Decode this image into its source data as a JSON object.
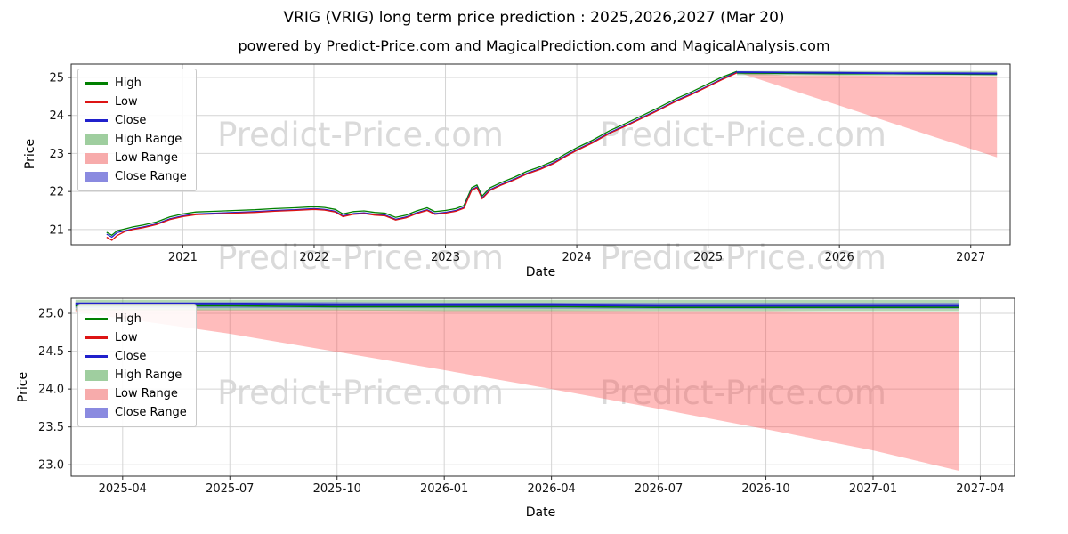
{
  "title": "VRIG (VRIG) long term price prediction : 2025,2026,2027 (Mar 20)",
  "subtitle": "powered by Predict-Price.com and MagicalPrediction.com and MagicalAnalysis.com",
  "watermark": {
    "text": "Predict-Price.com"
  },
  "legend": {
    "items": [
      {
        "label": "High",
        "color": "#008000",
        "type": "line"
      },
      {
        "label": "Low",
        "color": "#dd1414",
        "type": "line"
      },
      {
        "label": "Close",
        "color": "#2020cc",
        "type": "line"
      },
      {
        "label": "High Range",
        "color": "#9fce9f",
        "type": "patch"
      },
      {
        "label": "Low Range",
        "color": "#f7abab",
        "type": "patch"
      },
      {
        "label": "Close Range",
        "color": "#8a8ae0",
        "type": "patch"
      }
    ]
  },
  "chart_data": [
    {
      "type": "line",
      "title": "",
      "xlabel": "Date",
      "ylabel": "Price",
      "xlim": [
        2020.15,
        2027.3
      ],
      "ylim": [
        20.6,
        25.35
      ],
      "grid": true,
      "legend_position": "upper left",
      "xticks": [
        {
          "v": 2021,
          "label": "2021"
        },
        {
          "v": 2022,
          "label": "2022"
        },
        {
          "v": 2023,
          "label": "2023"
        },
        {
          "v": 2024,
          "label": "2024"
        },
        {
          "v": 2025,
          "label": "2025"
        },
        {
          "v": 2026,
          "label": "2026"
        },
        {
          "v": 2027,
          "label": "2027"
        }
      ],
      "yticks": [
        {
          "v": 21,
          "label": "21"
        },
        {
          "v": 22,
          "label": "22"
        },
        {
          "v": 23,
          "label": "23"
        },
        {
          "v": 24,
          "label": "24"
        },
        {
          "v": 25,
          "label": "25"
        }
      ],
      "bands": [
        {
          "name": "low-range",
          "color": "#ff5050",
          "opacity": 0.38,
          "x": [
            2025.22,
            2025.6,
            2026.0,
            2026.4,
            2026.8,
            2027.2
          ],
          "upper": [
            25.14,
            25.05,
            25.05,
            25.04,
            25.04,
            25.03
          ],
          "lower": [
            25.14,
            24.71,
            24.26,
            23.8,
            23.35,
            22.9
          ]
        },
        {
          "name": "high-range",
          "color": "#57a957",
          "opacity": 0.45,
          "x": [
            2025.22,
            2025.6,
            2026.0,
            2026.4,
            2026.8,
            2027.2
          ],
          "upper": [
            25.17,
            25.17,
            25.17,
            25.17,
            25.17,
            25.17
          ],
          "lower": [
            25.06,
            25.06,
            25.05,
            25.05,
            25.05,
            25.04
          ]
        },
        {
          "name": "close-range",
          "color": "#5b5bdb",
          "opacity": 0.5,
          "x": [
            2025.22,
            2025.6,
            2026.0,
            2026.4,
            2026.8,
            2027.2
          ],
          "upper": [
            25.16,
            25.15,
            25.15,
            25.14,
            25.14,
            25.14
          ],
          "lower": [
            25.09,
            25.09,
            25.08,
            25.08,
            25.07,
            25.07
          ]
        }
      ],
      "lines": [
        {
          "name": "high-history",
          "color": "#008000",
          "width": 1.3,
          "x": [
            2020.42,
            2020.46,
            2020.5,
            2020.56,
            2020.62,
            2020.7,
            2020.8,
            2020.9,
            2021.0,
            2021.1,
            2021.25,
            2021.4,
            2021.55,
            2021.7,
            2021.85,
            2022.0,
            2022.08,
            2022.16,
            2022.22,
            2022.3,
            2022.38,
            2022.46,
            2022.54,
            2022.62,
            2022.7,
            2022.78,
            2022.86,
            2022.92,
            2023.0,
            2023.08,
            2023.14,
            2023.2,
            2023.24,
            2023.28,
            2023.34,
            2023.42,
            2023.52,
            2023.62,
            2023.72,
            2023.82,
            2023.92,
            2024.0,
            2024.12,
            2024.25,
            2024.38,
            2024.5,
            2024.62,
            2024.75,
            2024.88,
            2025.0,
            2025.1,
            2025.22
          ],
          "y": [
            20.93,
            20.85,
            20.97,
            21.02,
            21.07,
            21.12,
            21.2,
            21.33,
            21.41,
            21.46,
            21.48,
            21.5,
            21.52,
            21.55,
            21.57,
            21.6,
            21.58,
            21.53,
            21.41,
            21.47,
            21.49,
            21.45,
            21.43,
            21.32,
            21.38,
            21.49,
            21.57,
            21.47,
            21.5,
            21.55,
            21.63,
            22.1,
            22.17,
            21.88,
            22.1,
            22.23,
            22.37,
            22.53,
            22.65,
            22.8,
            23.0,
            23.15,
            23.35,
            23.6,
            23.8,
            24.0,
            24.2,
            24.43,
            24.63,
            24.83,
            25.0,
            25.16
          ]
        },
        {
          "name": "close-history",
          "color": "#2020cc",
          "width": 1.3,
          "x": [
            2020.42,
            2020.46,
            2020.5,
            2020.56,
            2020.62,
            2020.7,
            2020.8,
            2020.9,
            2021.0,
            2021.1,
            2021.25,
            2021.4,
            2021.55,
            2021.7,
            2021.85,
            2022.0,
            2022.08,
            2022.16,
            2022.22,
            2022.3,
            2022.38,
            2022.46,
            2022.54,
            2022.62,
            2022.7,
            2022.78,
            2022.86,
            2022.92,
            2023.0,
            2023.08,
            2023.14,
            2023.2,
            2023.24,
            2023.28,
            2023.34,
            2023.42,
            2023.52,
            2023.62,
            2023.72,
            2023.82,
            2023.92,
            2024.0,
            2024.12,
            2024.25,
            2024.38,
            2024.5,
            2024.62,
            2024.75,
            2024.88,
            2025.0,
            2025.1,
            2025.22
          ],
          "y": [
            20.88,
            20.8,
            20.92,
            20.97,
            21.02,
            21.07,
            21.15,
            21.28,
            21.36,
            21.41,
            21.43,
            21.45,
            21.47,
            21.5,
            21.52,
            21.55,
            21.53,
            21.48,
            21.36,
            21.42,
            21.44,
            21.4,
            21.38,
            21.27,
            21.33,
            21.44,
            21.52,
            21.42,
            21.45,
            21.5,
            21.58,
            22.05,
            22.12,
            21.83,
            22.05,
            22.18,
            22.32,
            22.48,
            22.6,
            22.75,
            22.95,
            23.1,
            23.3,
            23.55,
            23.75,
            23.95,
            24.15,
            24.38,
            24.58,
            24.78,
            24.95,
            25.14
          ]
        },
        {
          "name": "low-history",
          "color": "#dd1414",
          "width": 1.3,
          "x": [
            2020.42,
            2020.46,
            2020.5,
            2020.56,
            2020.62,
            2020.7,
            2020.8,
            2020.9,
            2021.0,
            2021.1,
            2021.25,
            2021.4,
            2021.55,
            2021.7,
            2021.85,
            2022.0,
            2022.08,
            2022.16,
            2022.22,
            2022.3,
            2022.38,
            2022.46,
            2022.54,
            2022.62,
            2022.7,
            2022.78,
            2022.86,
            2022.92,
            2023.0,
            2023.08,
            2023.14,
            2023.2,
            2023.24,
            2023.28,
            2023.34,
            2023.42,
            2023.52,
            2023.62,
            2023.72,
            2023.82,
            2023.92,
            2024.0,
            2024.12,
            2024.25,
            2024.38,
            2024.5,
            2024.62,
            2024.75,
            2024.88,
            2025.0,
            2025.1,
            2025.22
          ],
          "y": [
            20.8,
            20.72,
            20.84,
            20.95,
            21.0,
            21.05,
            21.13,
            21.26,
            21.34,
            21.39,
            21.41,
            21.43,
            21.45,
            21.48,
            21.5,
            21.53,
            21.51,
            21.46,
            21.34,
            21.4,
            21.42,
            21.38,
            21.36,
            21.25,
            21.31,
            21.42,
            21.5,
            21.4,
            21.43,
            21.48,
            21.56,
            22.03,
            22.1,
            21.81,
            22.03,
            22.16,
            22.3,
            22.46,
            22.58,
            22.73,
            22.93,
            23.08,
            23.28,
            23.53,
            23.73,
            23.93,
            24.13,
            24.36,
            24.56,
            24.76,
            24.93,
            25.12
          ]
        },
        {
          "name": "high-forecast",
          "color": "#008000",
          "width": 1.6,
          "x": [
            2025.22,
            2025.6,
            2026.0,
            2026.4,
            2026.8,
            2027.2
          ],
          "y": [
            25.12,
            25.11,
            25.1,
            25.1,
            25.09,
            25.08
          ]
        },
        {
          "name": "close-forecast",
          "color": "#2020cc",
          "width": 1.8,
          "x": [
            2025.22,
            2025.6,
            2026.0,
            2026.4,
            2026.8,
            2027.2
          ],
          "y": [
            25.14,
            25.13,
            25.12,
            25.11,
            25.11,
            25.1
          ]
        }
      ]
    },
    {
      "type": "line",
      "title": "",
      "xlabel": "Date",
      "ylabel": "Price",
      "xlim": [
        2025.13,
        2027.33
      ],
      "ylim": [
        22.85,
        25.2
      ],
      "grid": true,
      "legend_position": "upper left",
      "xticks": [
        {
          "v": 2025.25,
          "label": "2025-04"
        },
        {
          "v": 2025.5,
          "label": "2025-07"
        },
        {
          "v": 2025.75,
          "label": "2025-10"
        },
        {
          "v": 2026.0,
          "label": "2026-01"
        },
        {
          "v": 2026.25,
          "label": "2026-04"
        },
        {
          "v": 2026.5,
          "label": "2026-07"
        },
        {
          "v": 2026.75,
          "label": "2026-10"
        },
        {
          "v": 2027.0,
          "label": "2027-01"
        },
        {
          "v": 2027.25,
          "label": "2027-04"
        }
      ],
      "yticks": [
        {
          "v": 23.0,
          "label": "23.0"
        },
        {
          "v": 23.5,
          "label": "23.5"
        },
        {
          "v": 24.0,
          "label": "24.0"
        },
        {
          "v": 24.5,
          "label": "24.5"
        },
        {
          "v": 25.0,
          "label": "25.0"
        }
      ],
      "bands": [
        {
          "name": "low-range",
          "color": "#ff5050",
          "opacity": 0.38,
          "x": [
            2025.14,
            2025.5,
            2025.75,
            2026.0,
            2026.25,
            2026.5,
            2026.75,
            2027.0,
            2027.2
          ],
          "upper": [
            25.06,
            25.05,
            25.05,
            25.04,
            25.04,
            25.03,
            25.03,
            25.02,
            25.02
          ],
          "lower": [
            25.02,
            24.73,
            24.49,
            24.25,
            24.0,
            23.74,
            23.47,
            23.19,
            22.92
          ]
        },
        {
          "name": "high-range",
          "color": "#57a957",
          "opacity": 0.45,
          "x": [
            2025.14,
            2025.5,
            2025.75,
            2026.0,
            2026.25,
            2026.5,
            2026.75,
            2027.0,
            2027.2
          ],
          "upper": [
            25.18,
            25.18,
            25.18,
            25.18,
            25.18,
            25.18,
            25.18,
            25.18,
            25.18
          ],
          "lower": [
            25.04,
            25.04,
            25.04,
            25.03,
            25.03,
            25.03,
            25.03,
            25.03,
            25.03
          ]
        },
        {
          "name": "close-range",
          "color": "#5b5bdb",
          "opacity": 0.5,
          "x": [
            2025.14,
            2025.5,
            2025.75,
            2026.0,
            2026.25,
            2026.5,
            2026.75,
            2027.0,
            2027.2
          ],
          "upper": [
            25.15,
            25.15,
            25.15,
            25.14,
            25.14,
            25.14,
            25.14,
            25.13,
            25.13
          ],
          "lower": [
            25.07,
            25.07,
            25.07,
            25.07,
            25.06,
            25.06,
            25.06,
            25.06,
            25.06
          ]
        }
      ],
      "lines": [
        {
          "name": "high-forecast",
          "color": "#008000",
          "width": 1.6,
          "x": [
            2025.14,
            2025.5,
            2025.75,
            2026.0,
            2026.25,
            2026.5,
            2026.75,
            2027.0,
            2027.2
          ],
          "y": [
            25.1,
            25.1,
            25.09,
            25.09,
            25.09,
            25.08,
            25.08,
            25.08,
            25.08
          ]
        },
        {
          "name": "close-forecast",
          "color": "#2020cc",
          "width": 1.8,
          "x": [
            2025.14,
            2025.5,
            2025.75,
            2026.0,
            2026.25,
            2026.5,
            2026.75,
            2027.0,
            2027.2
          ],
          "y": [
            25.12,
            25.12,
            25.11,
            25.11,
            25.11,
            25.1,
            25.1,
            25.1,
            25.1
          ]
        }
      ]
    }
  ]
}
